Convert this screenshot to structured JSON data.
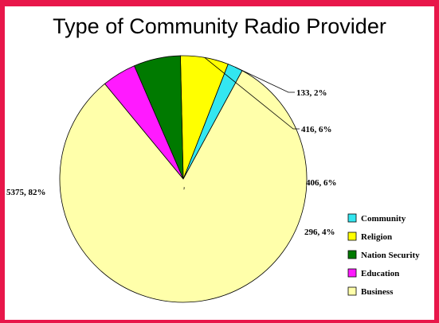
{
  "slide": {
    "accent_color": "#e8174a"
  },
  "chart_data": {
    "type": "pie",
    "title": "Type of Community Radio Provider",
    "center_mark": "2",
    "slices": [
      {
        "name": "Community",
        "value": 133,
        "percent": 2,
        "label": "133, 2%",
        "color": "#33e6f0"
      },
      {
        "name": "Religion",
        "value": 416,
        "percent": 6,
        "label": "416, 6%",
        "color": "#ffff00"
      },
      {
        "name": "Nation Security",
        "value": 406,
        "percent": 6,
        "label": "406, 6%",
        "color": "#007a00"
      },
      {
        "name": "Education",
        "value": 296,
        "percent": 4,
        "label": "296, 4%",
        "color": "#ff1aff"
      },
      {
        "name": "Business",
        "value": 5375,
        "percent": 82,
        "label": "5375, 82%",
        "color": "#ffffaa"
      }
    ],
    "legend_position": "bottom-right"
  }
}
